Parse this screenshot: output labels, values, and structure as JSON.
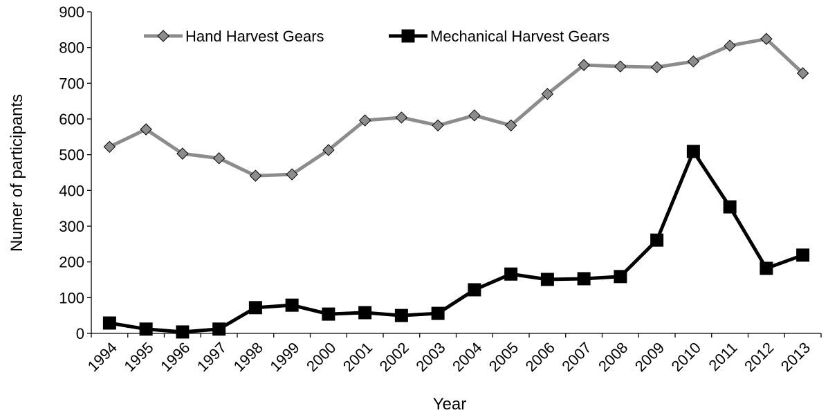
{
  "chart_data": {
    "type": "line",
    "x_label": "Year",
    "y_label": "Numer of participants",
    "categories": [
      "1994",
      "1995",
      "1996",
      "1997",
      "1998",
      "1999",
      "2000",
      "2001",
      "2002",
      "2003",
      "2004",
      "2005",
      "2006",
      "2007",
      "2008",
      "2009",
      "2010",
      "2011",
      "2012",
      "2013"
    ],
    "series": [
      {
        "name": "Hand Harvest Gears",
        "color": "#8c8c8c",
        "marker": "diamond",
        "values": [
          522,
          571,
          503,
          490,
          441,
          445,
          513,
          596,
          604,
          582,
          610,
          582,
          670,
          751,
          747,
          745,
          761,
          805,
          824,
          728
        ]
      },
      {
        "name": "Mechanical Harvest Gears",
        "color": "#000000",
        "marker": "square",
        "values": [
          29,
          12,
          4,
          12,
          72,
          79,
          54,
          58,
          50,
          56,
          122,
          166,
          151,
          153,
          159,
          261,
          509,
          354,
          182,
          219
        ]
      }
    ],
    "ylim": [
      0,
      900
    ],
    "yticks": [
      0,
      100,
      200,
      300,
      400,
      500,
      600,
      700,
      800,
      900
    ],
    "grid": false,
    "legend": "top-left"
  }
}
